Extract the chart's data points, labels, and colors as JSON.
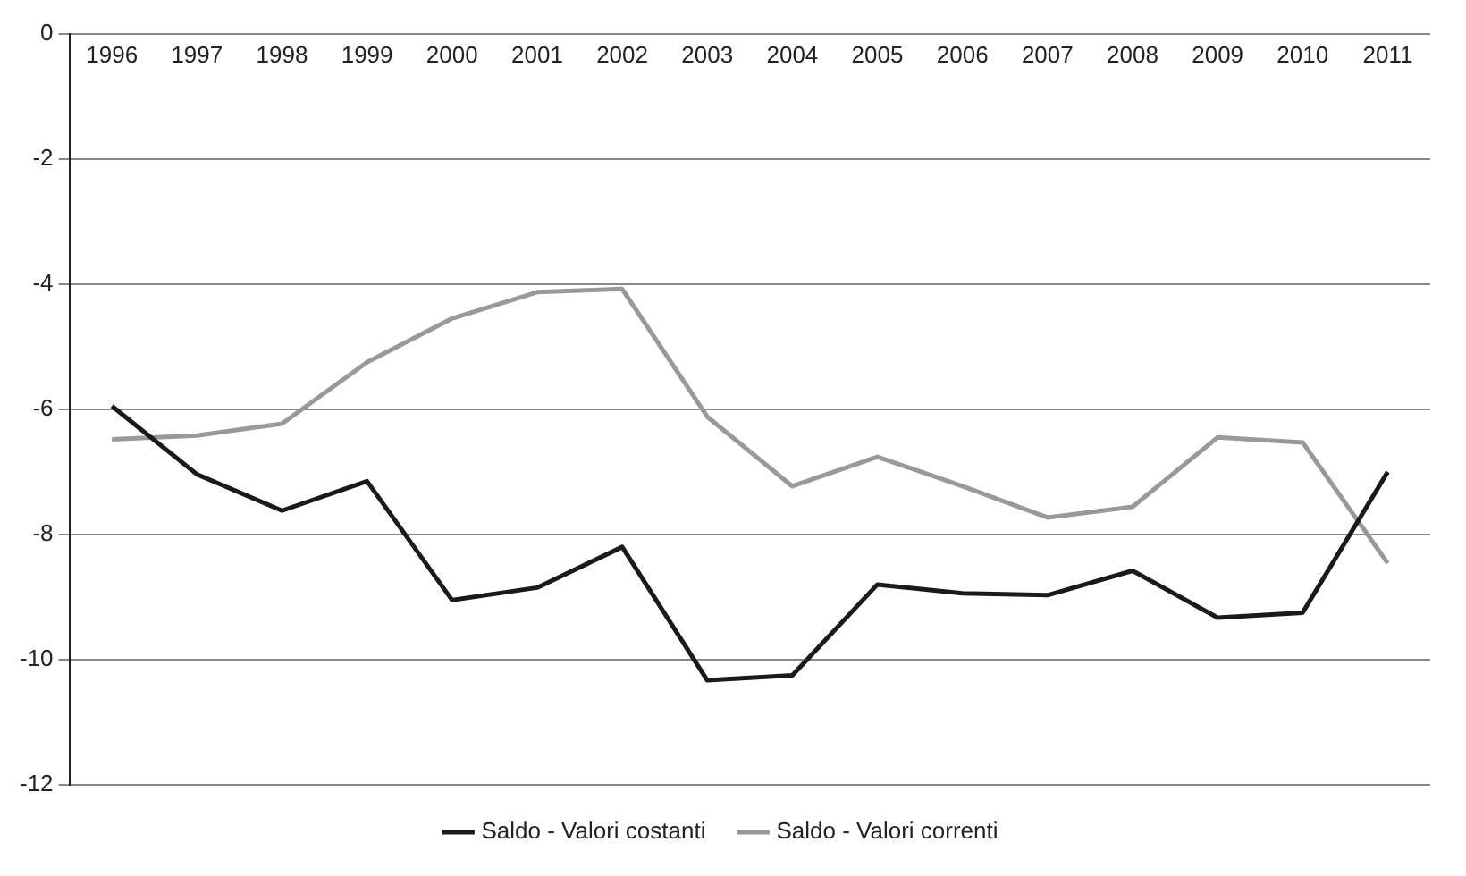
{
  "chart_data": {
    "type": "line",
    "categories": [
      "1996",
      "1997",
      "1998",
      "1999",
      "2000",
      "2001",
      "2002",
      "2003",
      "2004",
      "2005",
      "2006",
      "2007",
      "2008",
      "2009",
      "2010",
      "2011"
    ],
    "series": [
      {
        "name": "Saldo - Valori costanti",
        "color": "#1a1a1a",
        "values": [
          -5.95,
          -7.04,
          -7.62,
          -7.15,
          -9.05,
          -8.85,
          -8.2,
          -10.33,
          -10.25,
          -8.8,
          -8.94,
          -8.97,
          -8.58,
          -9.33,
          -9.25,
          -7.0
        ]
      },
      {
        "name": "Saldo - Valori correnti",
        "color": "#999999",
        "values": [
          -6.48,
          -6.42,
          -6.23,
          -5.25,
          -4.55,
          -4.13,
          -4.08,
          -6.12,
          -7.23,
          -6.76,
          -7.23,
          -7.73,
          -7.56,
          -6.45,
          -6.53,
          -8.46
        ]
      }
    ],
    "ylim": [
      -12,
      0
    ],
    "yticks": [
      0,
      -2,
      -4,
      -6,
      -8,
      -10,
      -12
    ],
    "grid": "y",
    "legend": "bottom",
    "marker": "none",
    "line_style": "solid"
  }
}
